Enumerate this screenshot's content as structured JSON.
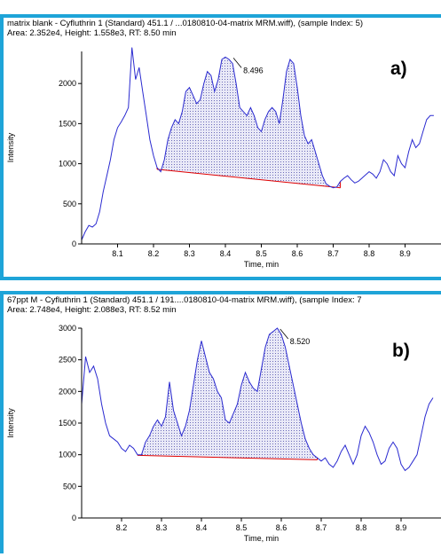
{
  "panels": [
    {
      "title": "matrix blank - Cyfluthrin 1 (Standard) 451.1 / ...0180810-04-matrix MRM.wiff), (sample Index: 5)",
      "stats": "Area: 2.352e4, Height: 1.558e3, RT: 8.50 min",
      "tag": "a)"
    },
    {
      "title": "67ppt M - Cyfluthrin 1 (Standard) 451.1 / 191....0180810-04-matrix MRM.wiff), (sample Index: 7",
      "stats": "Area: 2.748e4, Height: 2.088e3, RT: 8.52 min",
      "tag": "b)"
    }
  ],
  "chart_data": [
    {
      "type": "line",
      "xlabel": "Time, min",
      "ylabel": "Intensity",
      "xlim": [
        8.0,
        9.0
      ],
      "ylim": [
        0,
        2400
      ],
      "xticks": [
        "8.1",
        "8.2",
        "8.3",
        "8.4",
        "8.5",
        "8.6",
        "8.7",
        "8.8",
        "8.9"
      ],
      "yticks": [
        "0",
        "500",
        "1000",
        "1500",
        "2000"
      ],
      "peak_label": "8.496",
      "peak": {
        "x": 8.42,
        "y": 2330
      },
      "baseline": [
        [
          8.21,
          930
        ],
        [
          8.72,
          700
        ]
      ],
      "integrated_range": [
        8.21,
        8.72
      ],
      "colors": {
        "trace": "#2a2ad0",
        "baseline": "#e00000",
        "fill": "#6b6bb8"
      },
      "series": [
        {
          "x": [
            8.0,
            8.01,
            8.02,
            8.03,
            8.04,
            8.05,
            8.06,
            8.07,
            8.08,
            8.09,
            8.1,
            8.11,
            8.12,
            8.13,
            8.14,
            8.15,
            8.16,
            8.17,
            8.18,
            8.19,
            8.2,
            8.21,
            8.22,
            8.23,
            8.24,
            8.25,
            8.26,
            8.27,
            8.28,
            8.29,
            8.3,
            8.31,
            8.32,
            8.33,
            8.34,
            8.35,
            8.36,
            8.37,
            8.38,
            8.39,
            8.4,
            8.41,
            8.42,
            8.43,
            8.44,
            8.45,
            8.46,
            8.47,
            8.48,
            8.49,
            8.5,
            8.51,
            8.52,
            8.53,
            8.54,
            8.55,
            8.56,
            8.57,
            8.58,
            8.59,
            8.6,
            8.61,
            8.62,
            8.63,
            8.64,
            8.65,
            8.66,
            8.67,
            8.68,
            8.69,
            8.7,
            8.71,
            8.72,
            8.73,
            8.74,
            8.75,
            8.76,
            8.77,
            8.78,
            8.79,
            8.8,
            8.81,
            8.82,
            8.83,
            8.84,
            8.85,
            8.86,
            8.87,
            8.88,
            8.89,
            8.9,
            8.91,
            8.92,
            8.93,
            8.94,
            8.95,
            8.96,
            8.97,
            8.98
          ],
          "y": [
            50,
            150,
            230,
            210,
            250,
            400,
            650,
            850,
            1050,
            1300,
            1450,
            1520,
            1600,
            1700,
            2450,
            2050,
            2200,
            1900,
            1600,
            1300,
            1100,
            950,
            900,
            1050,
            1300,
            1450,
            1550,
            1500,
            1650,
            1900,
            1950,
            1850,
            1750,
            1800,
            2000,
            2150,
            2100,
            1900,
            2050,
            2300,
            2330,
            2300,
            2250,
            2000,
            1700,
            1650,
            1600,
            1700,
            1600,
            1450,
            1400,
            1550,
            1650,
            1700,
            1650,
            1500,
            1800,
            2150,
            2300,
            2250,
            1950,
            1600,
            1350,
            1250,
            1300,
            1150,
            1000,
            850,
            750,
            720,
            700,
            710,
            780,
            820,
            850,
            800,
            760,
            780,
            820,
            860,
            900,
            870,
            820,
            900,
            1050,
            1000,
            900,
            850,
            1100,
            1000,
            950,
            1150,
            1300,
            1200,
            1250,
            1400,
            1550,
            1600,
            1600
          ]
        }
      ]
    },
    {
      "type": "line",
      "xlabel": "Time, min",
      "ylabel": "Intensity",
      "xlim": [
        8.1,
        9.0
      ],
      "ylim": [
        0,
        3000
      ],
      "xticks": [
        "8.2",
        "8.3",
        "8.4",
        "8.5",
        "8.6",
        "8.7",
        "8.8",
        "8.9"
      ],
      "yticks": [
        "0",
        "500",
        "1000",
        "1500",
        "2000",
        "2500",
        "3000"
      ],
      "peak_label": "8.520",
      "peak": {
        "x": 8.595,
        "y": 3000
      },
      "baseline": [
        [
          8.24,
          990
        ],
        [
          8.69,
          920
        ]
      ],
      "integrated_range": [
        8.24,
        8.69
      ],
      "colors": {
        "trace": "#2a2ad0",
        "baseline": "#e00000",
        "fill": "#6b6bb8"
      },
      "series": [
        {
          "x": [
            8.1,
            8.11,
            8.12,
            8.13,
            8.14,
            8.15,
            8.16,
            8.17,
            8.18,
            8.19,
            8.2,
            8.21,
            8.22,
            8.23,
            8.24,
            8.25,
            8.26,
            8.27,
            8.28,
            8.29,
            8.3,
            8.31,
            8.32,
            8.33,
            8.34,
            8.35,
            8.36,
            8.37,
            8.38,
            8.39,
            8.4,
            8.41,
            8.42,
            8.43,
            8.44,
            8.45,
            8.46,
            8.47,
            8.48,
            8.49,
            8.5,
            8.51,
            8.52,
            8.53,
            8.54,
            8.55,
            8.56,
            8.57,
            8.58,
            8.59,
            8.6,
            8.61,
            8.62,
            8.63,
            8.64,
            8.65,
            8.66,
            8.67,
            8.68,
            8.69,
            8.7,
            8.71,
            8.72,
            8.73,
            8.74,
            8.75,
            8.76,
            8.77,
            8.78,
            8.79,
            8.8,
            8.81,
            8.82,
            8.83,
            8.84,
            8.85,
            8.86,
            8.87,
            8.88,
            8.89,
            8.9,
            8.91,
            8.92,
            8.93,
            8.94,
            8.95,
            8.96,
            8.97,
            8.98
          ],
          "y": [
            1800,
            2550,
            2300,
            2400,
            2200,
            1800,
            1500,
            1300,
            1250,
            1200,
            1100,
            1050,
            1150,
            1100,
            1000,
            1000,
            1200,
            1300,
            1450,
            1550,
            1450,
            1600,
            2150,
            1700,
            1500,
            1300,
            1450,
            1700,
            2100,
            2500,
            2800,
            2550,
            2300,
            2200,
            2000,
            1900,
            1550,
            1500,
            1650,
            1800,
            2100,
            2300,
            2150,
            2050,
            2000,
            2350,
            2700,
            2900,
            2950,
            3000,
            2900,
            2700,
            2400,
            2100,
            1800,
            1500,
            1250,
            1100,
            1000,
            950,
            900,
            950,
            850,
            800,
            900,
            1050,
            1150,
            1000,
            850,
            1000,
            1300,
            1450,
            1350,
            1200,
            1000,
            850,
            900,
            1100,
            1200,
            1100,
            850,
            750,
            800,
            900,
            1000,
            1300,
            1600,
            1800,
            1900
          ]
        }
      ]
    }
  ]
}
